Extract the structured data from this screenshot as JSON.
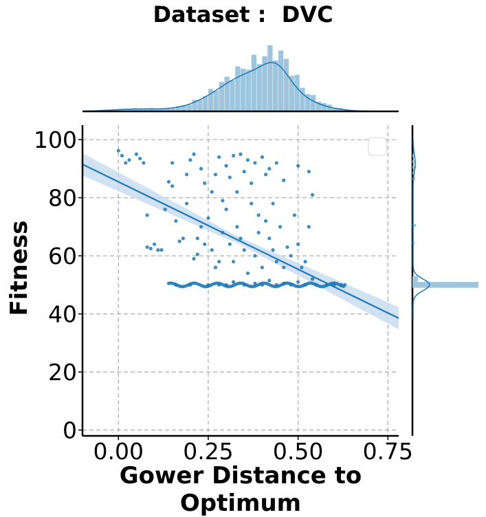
{
  "chart_data": {
    "type": "scatter",
    "title": "Dataset :  DVC",
    "xlabel": "Gower Distance to Optimum",
    "ylabel": "Fitness",
    "xlim": [
      -0.1,
      0.78
    ],
    "ylim": [
      -2,
      105
    ],
    "xticks": [
      0.0,
      0.25,
      0.5,
      0.75
    ],
    "xtick_labels": [
      "0.00",
      "0.25",
      "0.50",
      "0.75"
    ],
    "yticks": [
      0,
      20,
      40,
      60,
      80,
      100
    ],
    "ytick_labels": [
      "0",
      "20",
      "40",
      "60",
      "80",
      "100"
    ],
    "grid": true,
    "legend_position": "top-right",
    "colors": {
      "points": "#1f77b4",
      "hist": "#9ec5de",
      "ci_band": "#c6dbef"
    },
    "regression": {
      "x": [
        -0.1,
        0.78
      ],
      "y": [
        91.5,
        38.5
      ]
    },
    "points": [
      [
        0.0,
        96.2
      ],
      [
        0.01,
        94.5
      ],
      [
        0.02,
        92.0
      ],
      [
        0.03,
        93.0
      ],
      [
        0.05,
        95.0
      ],
      [
        0.06,
        93.5
      ],
      [
        0.07,
        92.0
      ],
      [
        0.08,
        74.0
      ],
      [
        0.08,
        63.0
      ],
      [
        0.09,
        62.5
      ],
      [
        0.1,
        64.0
      ],
      [
        0.11,
        62.0
      ],
      [
        0.12,
        62.0
      ],
      [
        0.13,
        76.0
      ],
      [
        0.14,
        85.5
      ],
      [
        0.15,
        84.0
      ],
      [
        0.15,
        92.0
      ],
      [
        0.16,
        72.0
      ],
      [
        0.17,
        65.0
      ],
      [
        0.18,
        66.0
      ],
      [
        0.19,
        78.0
      ],
      [
        0.19,
        88.0
      ],
      [
        0.2,
        93.0
      ],
      [
        0.21,
        95.0
      ],
      [
        0.21,
        59.0
      ],
      [
        0.22,
        60.5
      ],
      [
        0.22,
        66.0
      ],
      [
        0.23,
        90.0
      ],
      [
        0.23,
        70.0
      ],
      [
        0.24,
        64.0
      ],
      [
        0.24,
        85.0
      ],
      [
        0.25,
        73.0
      ],
      [
        0.26,
        82.0
      ],
      [
        0.26,
        62.0
      ],
      [
        0.27,
        56.0
      ],
      [
        0.27,
        88.0
      ],
      [
        0.28,
        94.0
      ],
      [
        0.28,
        58.0
      ],
      [
        0.29,
        79.0
      ],
      [
        0.29,
        68.0
      ],
      [
        0.3,
        91.0
      ],
      [
        0.3,
        76.0
      ],
      [
        0.31,
        64.0
      ],
      [
        0.31,
        87.0
      ],
      [
        0.32,
        94.5
      ],
      [
        0.32,
        58.0
      ],
      [
        0.33,
        82.0
      ],
      [
        0.33,
        70.0
      ],
      [
        0.34,
        95.0
      ],
      [
        0.34,
        66.0
      ],
      [
        0.35,
        89.0
      ],
      [
        0.35,
        62.0
      ],
      [
        0.36,
        93.0
      ],
      [
        0.36,
        54.0
      ],
      [
        0.37,
        78.0
      ],
      [
        0.37,
        85.0
      ],
      [
        0.38,
        92.0
      ],
      [
        0.38,
        60.0
      ],
      [
        0.39,
        74.0
      ],
      [
        0.39,
        68.0
      ],
      [
        0.4,
        94.0
      ],
      [
        0.4,
        56.0
      ],
      [
        0.41,
        72.0
      ],
      [
        0.41,
        88.0
      ],
      [
        0.42,
        90.0
      ],
      [
        0.42,
        66.0
      ],
      [
        0.43,
        62.0
      ],
      [
        0.43,
        78.0
      ],
      [
        0.44,
        92.0
      ],
      [
        0.44,
        58.0
      ],
      [
        0.45,
        70.0
      ],
      [
        0.46,
        86.0
      ],
      [
        0.46,
        56.0
      ],
      [
        0.47,
        63.0
      ],
      [
        0.48,
        60.0
      ],
      [
        0.49,
        74.0
      ],
      [
        0.5,
        91.0
      ],
      [
        0.5,
        64.0
      ],
      [
        0.51,
        56.0
      ],
      [
        0.52,
        58.0
      ],
      [
        0.53,
        89.0
      ],
      [
        0.53,
        70.0
      ],
      [
        0.54,
        81.0
      ],
      [
        0.54,
        52.0
      ],
      [
        0.3,
        50.0
      ],
      [
        0.32,
        51.0
      ],
      [
        0.35,
        50.0
      ],
      [
        0.38,
        50.5
      ],
      [
        0.4,
        50.0
      ],
      [
        0.42,
        51.5
      ],
      [
        0.44,
        50.0
      ],
      [
        0.46,
        50.5
      ],
      [
        0.48,
        50.0
      ],
      [
        0.5,
        51.0
      ],
      [
        0.52,
        50.0
      ],
      [
        0.55,
        50.0
      ],
      [
        0.58,
        50.0
      ],
      [
        0.6,
        50.0
      ],
      [
        0.62,
        50.0
      ],
      [
        0.63,
        50.0
      ],
      [
        0.16,
        50.0
      ],
      [
        0.2,
        50.0
      ],
      [
        0.25,
        50.0
      ],
      [
        0.28,
        50.0
      ]
    ]
  }
}
